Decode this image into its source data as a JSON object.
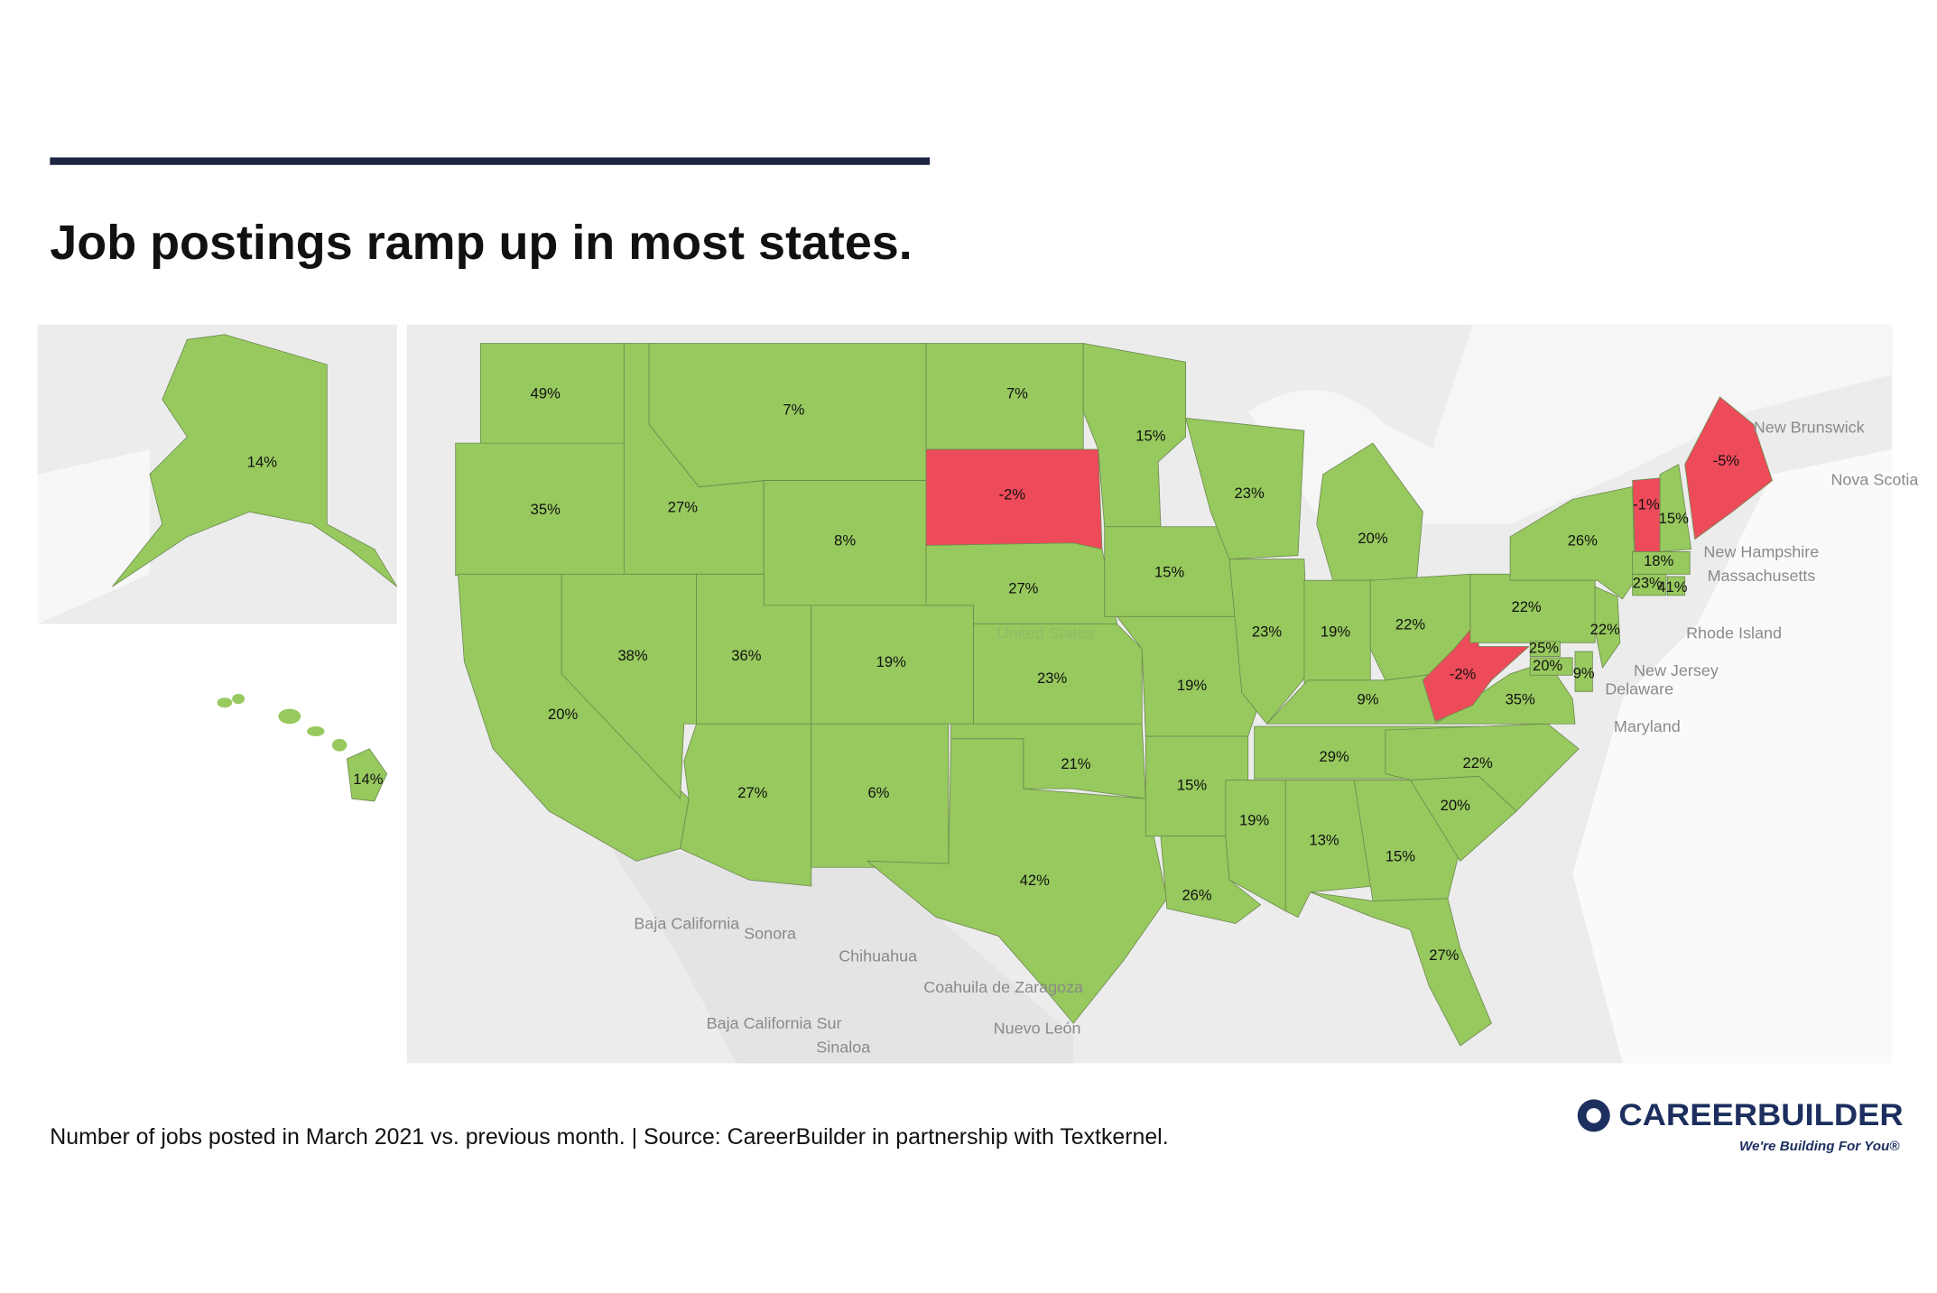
{
  "title": "Job postings ramp up in most states.",
  "caption": "Number of jobs posted in March 2021 vs. previous month. | Source: CareerBuilder in partnership with Textkernel.",
  "map": {
    "values": [
      14,
      14,
      49,
      35,
      20,
      38,
      27,
      7,
      8,
      36,
      19,
      27,
      6,
      7,
      -2,
      27,
      23,
      21,
      42,
      15,
      15,
      19,
      15,
      26,
      23,
      23,
      20,
      19,
      22,
      9,
      29,
      19,
      13,
      15,
      27,
      20,
      22,
      35,
      -2,
      22,
      26,
      25,
      20,
      9,
      22,
      23,
      41,
      18,
      15,
      -1,
      -5
    ],
    "value_labels": [
      "14%",
      "14%",
      "49%",
      "35%",
      "20%",
      "38%",
      "27%",
      "7%",
      "8%",
      "36%",
      "19%",
      "27%",
      "6%",
      "7%",
      "-2%",
      "27%",
      "23%",
      "21%",
      "42%",
      "15%",
      "15%",
      "19%",
      "15%",
      "26%",
      "23%",
      "23%",
      "20%",
      "19%",
      "22%",
      "9%",
      "29%",
      "19%",
      "13%",
      "15%",
      "27%",
      "20%",
      "22%",
      "35%",
      "-2%",
      "22%",
      "26%",
      "25%",
      "20%",
      "9%",
      "22%",
      "23%",
      "41%",
      "18%",
      "15%",
      "-1%",
      "-5%"
    ],
    "positive_color": "#97c95e",
    "negative_color": "#ee4b5a",
    "basemap_labels": [
      "United States",
      "New Brunswick",
      "Nova Scotia",
      "New Hampshire",
      "Massachusetts",
      "Rhode Island",
      "New Jersey",
      "Delaware",
      "Maryland",
      "Baja California",
      "Sonora",
      "Chihuahua",
      "Coahuila de Zaragoza",
      "Baja California Sur",
      "Nuevo León",
      "Sinaloa"
    ]
  },
  "logo": {
    "name": "CAREERBUILDER",
    "tagline": "We're Building For You®"
  }
}
